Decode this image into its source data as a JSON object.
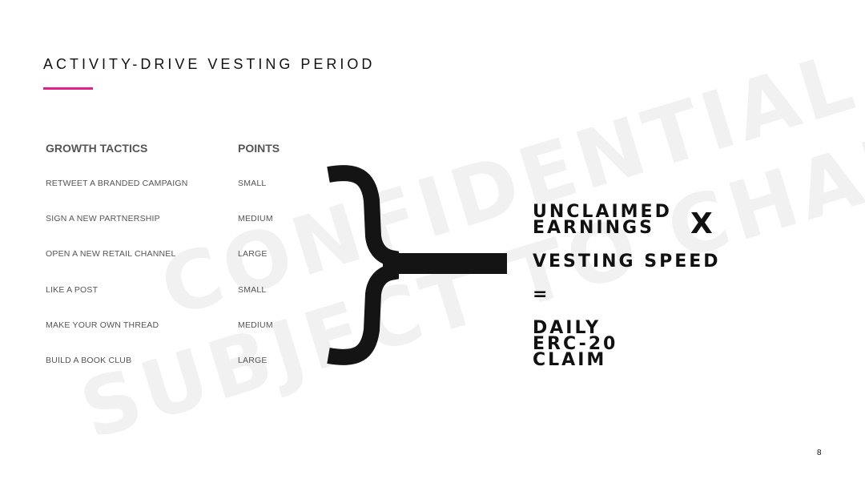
{
  "slide": {
    "title": "ACTIVITY-DRIVE VESTING PERIOD",
    "accent_color": "#e0218a",
    "page_number": "8"
  },
  "watermark": {
    "line1": "CONFIDENTIAL",
    "line2": "SUBJECT TO CHANGE"
  },
  "table": {
    "headers": {
      "tactics": "GROWTH TACTICS",
      "points": "POINTS"
    },
    "rows": [
      {
        "tactic": "RETWEET A BRANDED CAMPAIGN",
        "points": "SMALL"
      },
      {
        "tactic": "SIGN A NEW PARTNERSHIP",
        "points": "MEDIUM"
      },
      {
        "tactic": "OPEN A NEW RETAIL CHANNEL",
        "points": "LARGE"
      },
      {
        "tactic": "LIKE A POST",
        "points": "SMALL"
      },
      {
        "tactic": "MAKE YOUR OWN THREAD",
        "points": "MEDIUM"
      },
      {
        "tactic": "BUILD A BOOK CLUB",
        "points": "LARGE"
      }
    ]
  },
  "formula": {
    "term1_line1": "UNCLAIMED",
    "term1_line2": "EARNINGS",
    "operator": "X",
    "term2": "VESTING SPEED",
    "equals": "=",
    "result_line1": "DAILY",
    "result_line2": "ERC-20",
    "result_line3": "CLAIM"
  }
}
